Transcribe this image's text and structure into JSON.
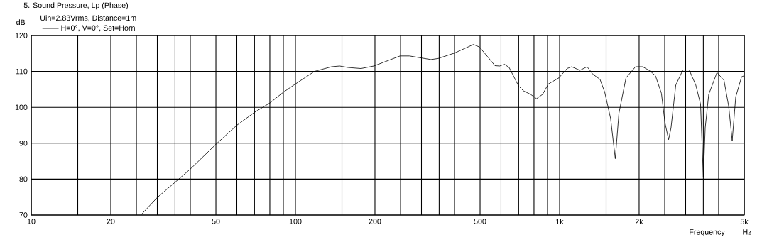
{
  "chart_data": {
    "type": "line",
    "title": "5. Sound Pressure, Lp (Phase)",
    "subtitle": "Uin=2.83Vrms, Distance=1m",
    "ylabel": "dB",
    "xlabel": "Frequency",
    "annotations": [
      "Hz"
    ],
    "log": "x",
    "grid": true,
    "legend": "top left",
    "marker": "none",
    "line_style": "solid",
    "xlim": [
      10,
      5000
    ],
    "ylim": [
      70,
      120
    ],
    "xticks": [
      10,
      {
        "value": 15,
        "label": null
      },
      20,
      {
        "value": 25,
        "label": null
      },
      {
        "value": 30,
        "label": null
      },
      {
        "value": 35,
        "label": null
      },
      {
        "value": 40,
        "label": null
      },
      50,
      {
        "value": 60,
        "label": null
      },
      {
        "value": 70,
        "label": null
      },
      {
        "value": 80,
        "label": null
      },
      {
        "value": 90,
        "label": null
      },
      100,
      {
        "value": 150,
        "label": null
      },
      200,
      {
        "value": 250,
        "label": null
      },
      {
        "value": 300,
        "label": null
      },
      {
        "value": 350,
        "label": null
      },
      {
        "value": 400,
        "label": null
      },
      500,
      {
        "value": 600,
        "label": null
      },
      {
        "value": 700,
        "label": null
      },
      {
        "value": 800,
        "label": null
      },
      {
        "value": 900,
        "label": null
      },
      {
        "value": 1000,
        "label": "1k"
      },
      {
        "value": 1500,
        "label": null
      },
      {
        "value": 2000,
        "label": "2k"
      },
      {
        "value": 2500,
        "label": null
      },
      {
        "value": 3000,
        "label": null
      },
      {
        "value": 3500,
        "label": null
      },
      {
        "value": 4000,
        "label": null
      },
      {
        "value": 5000,
        "label": "5k"
      }
    ],
    "yticks": [
      70,
      80,
      90,
      100,
      110,
      120
    ],
    "series": [
      {
        "name": "H=0°, V=0°, Set=Horn",
        "color": "#000000",
        "x": [
          26,
          30,
          35,
          40,
          50,
          60,
          70,
          80,
          90,
          100,
          118,
          137,
          147,
          158,
          177,
          198,
          249,
          270,
          326,
          347,
          400,
          472,
          497,
          534,
          569,
          593,
          618,
          644,
          700,
          729,
          777,
          818,
          862,
          907,
          994,
          1067,
          1111,
          1194,
          1271,
          1337,
          1422,
          1482,
          1560,
          1625,
          1677,
          1784,
          1938,
          2062,
          2192,
          2306,
          2429,
          2507,
          2586,
          2641,
          2753,
          2929,
          3095,
          3278,
          3416,
          3501,
          3558,
          3669,
          3943,
          4191,
          4366,
          4502,
          4643,
          4885,
          5000
        ],
        "values": [
          70,
          74.9,
          79.1,
          82.8,
          89.7,
          95,
          98.6,
          101.2,
          104.2,
          106.5,
          110,
          111.3,
          111.5,
          111.1,
          110.8,
          111.5,
          114.3,
          114.3,
          113.3,
          113.6,
          115.1,
          117.5,
          116.8,
          114.1,
          111.6,
          111.5,
          112,
          111.1,
          105.9,
          104.6,
          103.6,
          102.4,
          103.6,
          106.5,
          108.2,
          110.8,
          111.3,
          110.3,
          111.3,
          109.2,
          107.8,
          104.2,
          96.9,
          85.7,
          98.3,
          108.2,
          111.3,
          111.3,
          110.2,
          108.8,
          103.9,
          95.6,
          91,
          94.3,
          106.2,
          110.4,
          110.4,
          106.2,
          100.9,
          80.5,
          94.3,
          103.6,
          109.7,
          107.5,
          100.3,
          90.7,
          102.9,
          108.5,
          108.8
        ]
      }
    ]
  }
}
